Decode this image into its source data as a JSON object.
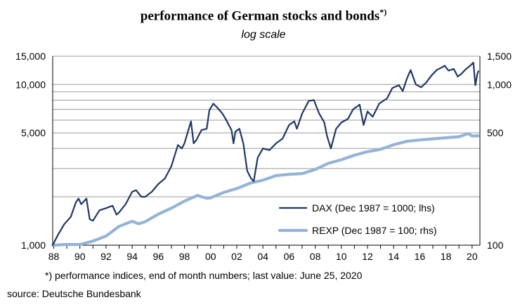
{
  "header": {
    "title": "performance of German stocks and bonds",
    "title_marker": "*)",
    "subtitle": "log scale"
  },
  "footnote": "*) performance indices, end of month numbers; last value: June 25, 2020",
  "source": "source: Deutsche Bundesbank",
  "chart_data": {
    "type": "line",
    "title": "performance of German stocks and bonds",
    "subtitle": "log scale",
    "x_tick_labels": [
      "88",
      "90",
      "92",
      "94",
      "96",
      "98",
      "00",
      "02",
      "04",
      "06",
      "08",
      "10",
      "12",
      "14",
      "16",
      "18",
      "20"
    ],
    "x_tick_years": [
      1988,
      1990,
      1992,
      1994,
      1996,
      1998,
      2000,
      2002,
      2004,
      2006,
      2008,
      2010,
      2012,
      2014,
      2016,
      2018,
      2020
    ],
    "xlim": [
      1987.92,
      2020.6
    ],
    "y_left": {
      "scale": "log",
      "lim": [
        1000,
        15000
      ],
      "tick_labels": [
        "1,000",
        "5,000",
        "10,000",
        "15,000"
      ],
      "tick_values": [
        1000,
        5000,
        10000,
        15000
      ]
    },
    "y_right": {
      "scale": "log",
      "lim": [
        100,
        1500
      ],
      "tick_labels": [
        "100",
        "500",
        "1,000",
        "1,500"
      ],
      "tick_values": [
        100,
        500,
        1000,
        1500
      ]
    },
    "grid": true,
    "legend_position": "lower-right",
    "series": [
      {
        "name": "DAX (Dec 1987 = 1000; lhs)",
        "axis": "left",
        "color": "#1f3864",
        "points": [
          [
            1987.92,
            1000
          ],
          [
            1988.3,
            1150
          ],
          [
            1988.8,
            1350
          ],
          [
            1989.3,
            1500
          ],
          [
            1989.7,
            1850
          ],
          [
            1989.9,
            1950
          ],
          [
            1990.1,
            1800
          ],
          [
            1990.5,
            1950
          ],
          [
            1990.75,
            1450
          ],
          [
            1991.0,
            1420
          ],
          [
            1991.5,
            1650
          ],
          [
            1992.0,
            1700
          ],
          [
            1992.5,
            1760
          ],
          [
            1992.8,
            1550
          ],
          [
            1993.0,
            1600
          ],
          [
            1993.5,
            1800
          ],
          [
            1994.0,
            2150
          ],
          [
            1994.3,
            2200
          ],
          [
            1994.7,
            2000
          ],
          [
            1995.0,
            2000
          ],
          [
            1995.5,
            2150
          ],
          [
            1996.0,
            2400
          ],
          [
            1996.5,
            2600
          ],
          [
            1997.0,
            3100
          ],
          [
            1997.5,
            4200
          ],
          [
            1997.8,
            4000
          ],
          [
            1998.0,
            4300
          ],
          [
            1998.5,
            5900
          ],
          [
            1998.7,
            4300
          ],
          [
            1998.9,
            4500
          ],
          [
            1999.3,
            5200
          ],
          [
            1999.7,
            5300
          ],
          [
            1999.9,
            6900
          ],
          [
            2000.2,
            7600
          ],
          [
            2000.5,
            7200
          ],
          [
            2000.9,
            6600
          ],
          [
            2001.2,
            6000
          ],
          [
            2001.6,
            5200
          ],
          [
            2001.75,
            4300
          ],
          [
            2001.9,
            5100
          ],
          [
            2002.2,
            5300
          ],
          [
            2002.5,
            4300
          ],
          [
            2002.8,
            2900
          ],
          [
            2003.1,
            2600
          ],
          [
            2003.3,
            2500
          ],
          [
            2003.6,
            3500
          ],
          [
            2004.0,
            4000
          ],
          [
            2004.5,
            3900
          ],
          [
            2005.0,
            4300
          ],
          [
            2005.5,
            4600
          ],
          [
            2006.0,
            5600
          ],
          [
            2006.4,
            5900
          ],
          [
            2006.6,
            5300
          ],
          [
            2007.0,
            6600
          ],
          [
            2007.5,
            7900
          ],
          [
            2007.9,
            8000
          ],
          [
            2008.3,
            6600
          ],
          [
            2008.7,
            5800
          ],
          [
            2008.9,
            4800
          ],
          [
            2009.2,
            4000
          ],
          [
            2009.6,
            5300
          ],
          [
            2010.0,
            5800
          ],
          [
            2010.5,
            6100
          ],
          [
            2010.9,
            7000
          ],
          [
            2011.4,
            7500
          ],
          [
            2011.7,
            5600
          ],
          [
            2012.0,
            6800
          ],
          [
            2012.4,
            6300
          ],
          [
            2012.9,
            7600
          ],
          [
            2013.5,
            8200
          ],
          [
            2013.9,
            9500
          ],
          [
            2014.4,
            9900
          ],
          [
            2014.7,
            9100
          ],
          [
            2015.0,
            10800
          ],
          [
            2015.3,
            12300
          ],
          [
            2015.7,
            10000
          ],
          [
            2016.1,
            9600
          ],
          [
            2016.5,
            10300
          ],
          [
            2016.9,
            11400
          ],
          [
            2017.3,
            12300
          ],
          [
            2017.7,
            12800
          ],
          [
            2017.9,
            13100
          ],
          [
            2018.2,
            12200
          ],
          [
            2018.6,
            12500
          ],
          [
            2018.9,
            11200
          ],
          [
            2019.2,
            11700
          ],
          [
            2019.5,
            12400
          ],
          [
            2019.9,
            13200
          ],
          [
            2020.1,
            13700
          ],
          [
            2020.25,
            9900
          ],
          [
            2020.4,
            11600
          ],
          [
            2020.48,
            12100
          ]
        ]
      },
      {
        "name": "REXP (Dec 1987 = 100; rhs)",
        "axis": "right",
        "color": "#95b3d7",
        "points": [
          [
            1987.92,
            100
          ],
          [
            1989.0,
            101
          ],
          [
            1990.0,
            101
          ],
          [
            1991.0,
            106
          ],
          [
            1992.0,
            114
          ],
          [
            1993.0,
            131
          ],
          [
            1994.0,
            141
          ],
          [
            1994.5,
            136
          ],
          [
            1995.0,
            140
          ],
          [
            1996.0,
            156
          ],
          [
            1997.0,
            170
          ],
          [
            1998.0,
            188
          ],
          [
            1999.0,
            204
          ],
          [
            1999.7,
            196
          ],
          [
            2000.0,
            197
          ],
          [
            2001.0,
            213
          ],
          [
            2002.0,
            225
          ],
          [
            2003.0,
            243
          ],
          [
            2004.0,
            254
          ],
          [
            2005.0,
            271
          ],
          [
            2006.0,
            276
          ],
          [
            2007.0,
            279
          ],
          [
            2008.0,
            296
          ],
          [
            2009.0,
            323
          ],
          [
            2010.0,
            340
          ],
          [
            2011.0,
            363
          ],
          [
            2012.0,
            382
          ],
          [
            2013.0,
            395
          ],
          [
            2014.0,
            422
          ],
          [
            2015.0,
            443
          ],
          [
            2016.0,
            452
          ],
          [
            2017.0,
            459
          ],
          [
            2018.0,
            466
          ],
          [
            2019.0,
            473
          ],
          [
            2019.7,
            495
          ],
          [
            2020.0,
            478
          ],
          [
            2020.48,
            479
          ]
        ]
      }
    ]
  }
}
